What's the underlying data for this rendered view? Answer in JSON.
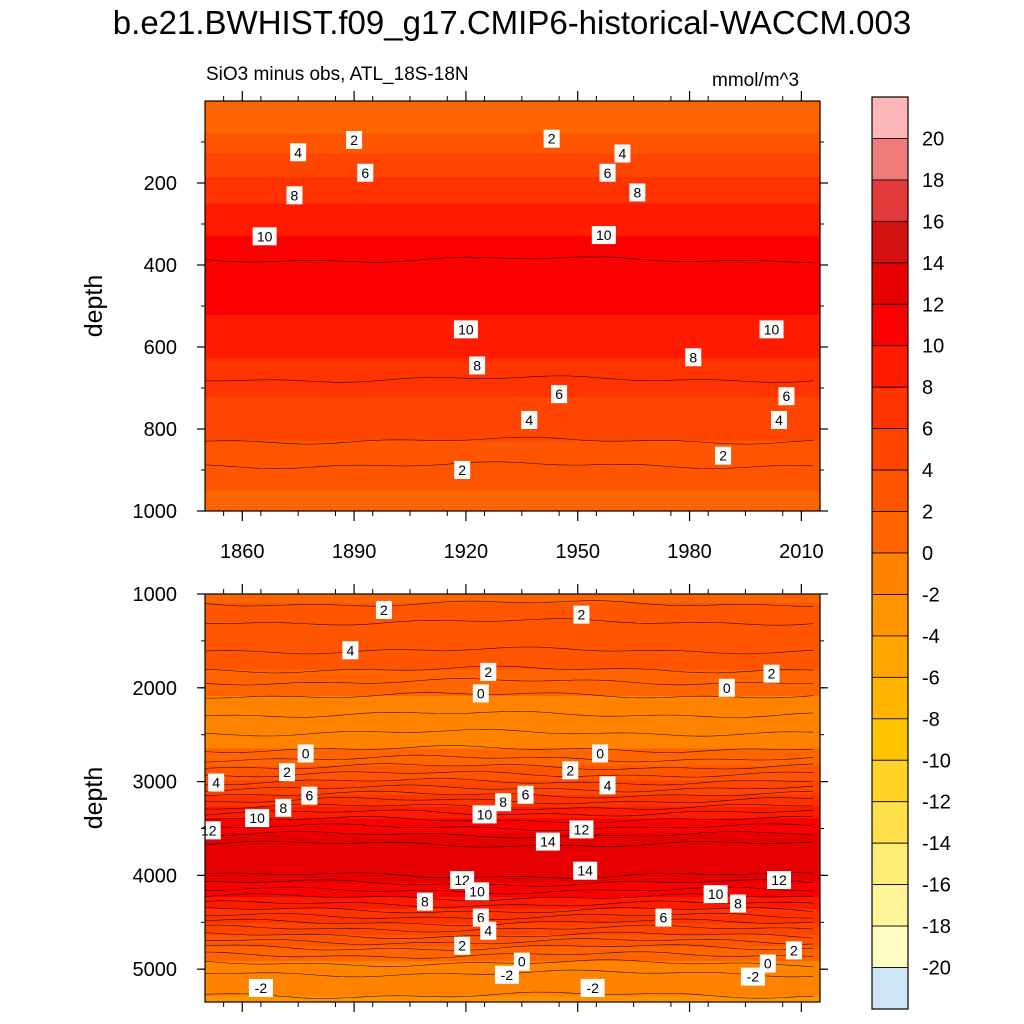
{
  "title": "b.e21.BWHIST.f09_g17.CMIP6-historical-WACCM.003",
  "subtitle": "SiO3 minus obs, ATL_18S-18N",
  "units": "mmol/m^3",
  "colorbar": {
    "ticks": [
      20,
      18,
      16,
      14,
      12,
      10,
      8,
      6,
      4,
      2,
      0,
      -2,
      -4,
      -6,
      -8,
      -10,
      -12,
      -14,
      -16,
      -18,
      -20
    ],
    "colors": [
      "#fdb7b8",
      "#f17b7b",
      "#e03a3a",
      "#d41111",
      "#e60000",
      "#fa0000",
      "#ff1a00",
      "#ff3300",
      "#ff4500",
      "#ff5500",
      "#ff6400",
      "#ff7400",
      "#ff8300",
      "#ff9300",
      "#ffa400",
      "#ffb400",
      "#ffc400",
      "#ffd226",
      "#ffdf4a",
      "#ffec73",
      "#fff59a",
      "#fffdc2",
      "#cde6f6",
      "#b8def3",
      "#a4d5f1",
      "#8ecdef",
      "#73c5f0",
      "#57bcf2",
      "#30b4f4",
      "#0ca8f5",
      "#0a96f5",
      "#1281f0",
      "#2070ea",
      "#2f5fe3",
      "#3c4ddc",
      "#3f3ae2",
      "#2222ea",
      "#0a0af0",
      "#4a1af0",
      "#6d1ee8",
      "#8a2ae6"
    ]
  },
  "chart_data": [
    {
      "type": "contour",
      "panel": "top",
      "ylabel": "depth",
      "ylim": [
        1000,
        0
      ],
      "yticks": [
        200,
        400,
        600,
        800,
        1000
      ],
      "xlim": [
        1850,
        2015
      ],
      "xticks": [
        1860,
        1890,
        1920,
        1950,
        1980,
        2010
      ],
      "levels": [
        -20,
        -18,
        -16,
        -14,
        -12,
        -10,
        -8,
        -6,
        -4,
        -2,
        0,
        2,
        4,
        6,
        8,
        10,
        12,
        14,
        16,
        18,
        20
      ],
      "profile": {
        "depth": [
          25,
          60,
          100,
          150,
          200,
          250,
          300,
          350,
          400,
          450,
          500,
          550,
          600,
          650,
          700,
          750,
          800,
          850,
          900,
          950,
          1000
        ],
        "value": [
          1.0,
          1.4,
          3.0,
          5.0,
          6.5,
          8.0,
          9.5,
          10.5,
          11.2,
          11.0,
          10.4,
          9.6,
          8.6,
          7.6,
          6.5,
          5.5,
          4.5,
          3.6,
          2.8,
          2.0,
          1.2
        ]
      },
      "contour_labels": [
        {
          "x": 1890,
          "y": 95,
          "text": "2"
        },
        {
          "x": 1875,
          "y": 125,
          "text": "4"
        },
        {
          "x": 1893,
          "y": 175,
          "text": "6"
        },
        {
          "x": 1874,
          "y": 230,
          "text": "8"
        },
        {
          "x": 1866,
          "y": 330,
          "text": "10"
        },
        {
          "x": 1943,
          "y": 92,
          "text": "2"
        },
        {
          "x": 1962,
          "y": 128,
          "text": "4"
        },
        {
          "x": 1958,
          "y": 175,
          "text": "6"
        },
        {
          "x": 1966,
          "y": 223,
          "text": "8"
        },
        {
          "x": 1957,
          "y": 327,
          "text": "10"
        },
        {
          "x": 1920,
          "y": 557,
          "text": "10"
        },
        {
          "x": 1923,
          "y": 645,
          "text": "8"
        },
        {
          "x": 1945,
          "y": 715,
          "text": "6"
        },
        {
          "x": 1937,
          "y": 778,
          "text": "4"
        },
        {
          "x": 1919,
          "y": 900,
          "text": "2"
        },
        {
          "x": 2002,
          "y": 557,
          "text": "10"
        },
        {
          "x": 1981,
          "y": 625,
          "text": "8"
        },
        {
          "x": 2006,
          "y": 720,
          "text": "6"
        },
        {
          "x": 2004,
          "y": 778,
          "text": "4"
        },
        {
          "x": 1989,
          "y": 865,
          "text": "2"
        }
      ]
    },
    {
      "type": "contour",
      "panel": "bottom",
      "ylabel": "depth",
      "ylim": [
        5350,
        1000
      ],
      "yticks": [
        1000,
        2000,
        3000,
        4000,
        5000
      ],
      "xlim": [
        1850,
        2015
      ],
      "xticks": [
        1860,
        1890,
        1920,
        1950,
        1980,
        2010
      ],
      "levels": [
        -20,
        -18,
        -16,
        -14,
        -12,
        -10,
        -8,
        -6,
        -4,
        -2,
        0,
        2,
        4,
        6,
        8,
        10,
        12,
        14,
        16,
        18,
        20
      ],
      "profile": {
        "depth": [
          1000,
          1200,
          1400,
          1600,
          1800,
          2000,
          2200,
          2400,
          2600,
          2800,
          3000,
          3200,
          3400,
          3600,
          3800,
          4000,
          4200,
          4400,
          4600,
          4800,
          5000,
          5200,
          5350
        ],
        "value": [
          1.5,
          2.5,
          3.6,
          3.0,
          2.0,
          0.5,
          -0.8,
          -1.3,
          -0.5,
          1.5,
          4.0,
          7.0,
          10.0,
          12.5,
          14.0,
          13.0,
          10.5,
          7.5,
          4.5,
          1.5,
          -0.8,
          -1.8,
          -2.2
        ]
      },
      "contour_labels": [
        {
          "x": 1898,
          "y": 1170,
          "text": "2"
        },
        {
          "x": 1951,
          "y": 1220,
          "text": "2"
        },
        {
          "x": 1889,
          "y": 1600,
          "text": "4"
        },
        {
          "x": 1926,
          "y": 1830,
          "text": "2"
        },
        {
          "x": 1924,
          "y": 2060,
          "text": "0"
        },
        {
          "x": 1990,
          "y": 2000,
          "text": "0"
        },
        {
          "x": 2002,
          "y": 1850,
          "text": "2"
        },
        {
          "x": 1877,
          "y": 2700,
          "text": "0"
        },
        {
          "x": 1956,
          "y": 2700,
          "text": "0"
        },
        {
          "x": 1872,
          "y": 2900,
          "text": "2"
        },
        {
          "x": 1853,
          "y": 3010,
          "text": "4"
        },
        {
          "x": 1925,
          "y": 3350,
          "text": "10"
        },
        {
          "x": 1930,
          "y": 3220,
          "text": "8"
        },
        {
          "x": 1936,
          "y": 3140,
          "text": "6"
        },
        {
          "x": 1958,
          "y": 3040,
          "text": "4"
        },
        {
          "x": 1948,
          "y": 2880,
          "text": "2"
        },
        {
          "x": 1864,
          "y": 3390,
          "text": "10"
        },
        {
          "x": 1871,
          "y": 3280,
          "text": "8"
        },
        {
          "x": 1878,
          "y": 3150,
          "text": "6"
        },
        {
          "x": 1851,
          "y": 3520,
          "text": "12"
        },
        {
          "x": 1942,
          "y": 3640,
          "text": "14"
        },
        {
          "x": 1951,
          "y": 3510,
          "text": "12"
        },
        {
          "x": 1952,
          "y": 3950,
          "text": "14"
        },
        {
          "x": 1919,
          "y": 4050,
          "text": "12"
        },
        {
          "x": 1923,
          "y": 4170,
          "text": "10"
        },
        {
          "x": 1909,
          "y": 4280,
          "text": "8"
        },
        {
          "x": 1924,
          "y": 4450,
          "text": "6"
        },
        {
          "x": 1926,
          "y": 4590,
          "text": "4"
        },
        {
          "x": 1919,
          "y": 4750,
          "text": "2"
        },
        {
          "x": 1935,
          "y": 4920,
          "text": "0"
        },
        {
          "x": 1931,
          "y": 5060,
          "text": "-2"
        },
        {
          "x": 1865,
          "y": 5200,
          "text": "-2"
        },
        {
          "x": 1954,
          "y": 5200,
          "text": "-2"
        },
        {
          "x": 1973,
          "y": 4450,
          "text": "6"
        },
        {
          "x": 1987,
          "y": 4200,
          "text": "10"
        },
        {
          "x": 1993,
          "y": 4300,
          "text": "8"
        },
        {
          "x": 2004,
          "y": 4050,
          "text": "12"
        },
        {
          "x": 2008,
          "y": 4800,
          "text": "2"
        },
        {
          "x": 2001,
          "y": 4940,
          "text": "0"
        },
        {
          "x": 1997,
          "y": 5080,
          "text": "-2"
        }
      ]
    }
  ]
}
